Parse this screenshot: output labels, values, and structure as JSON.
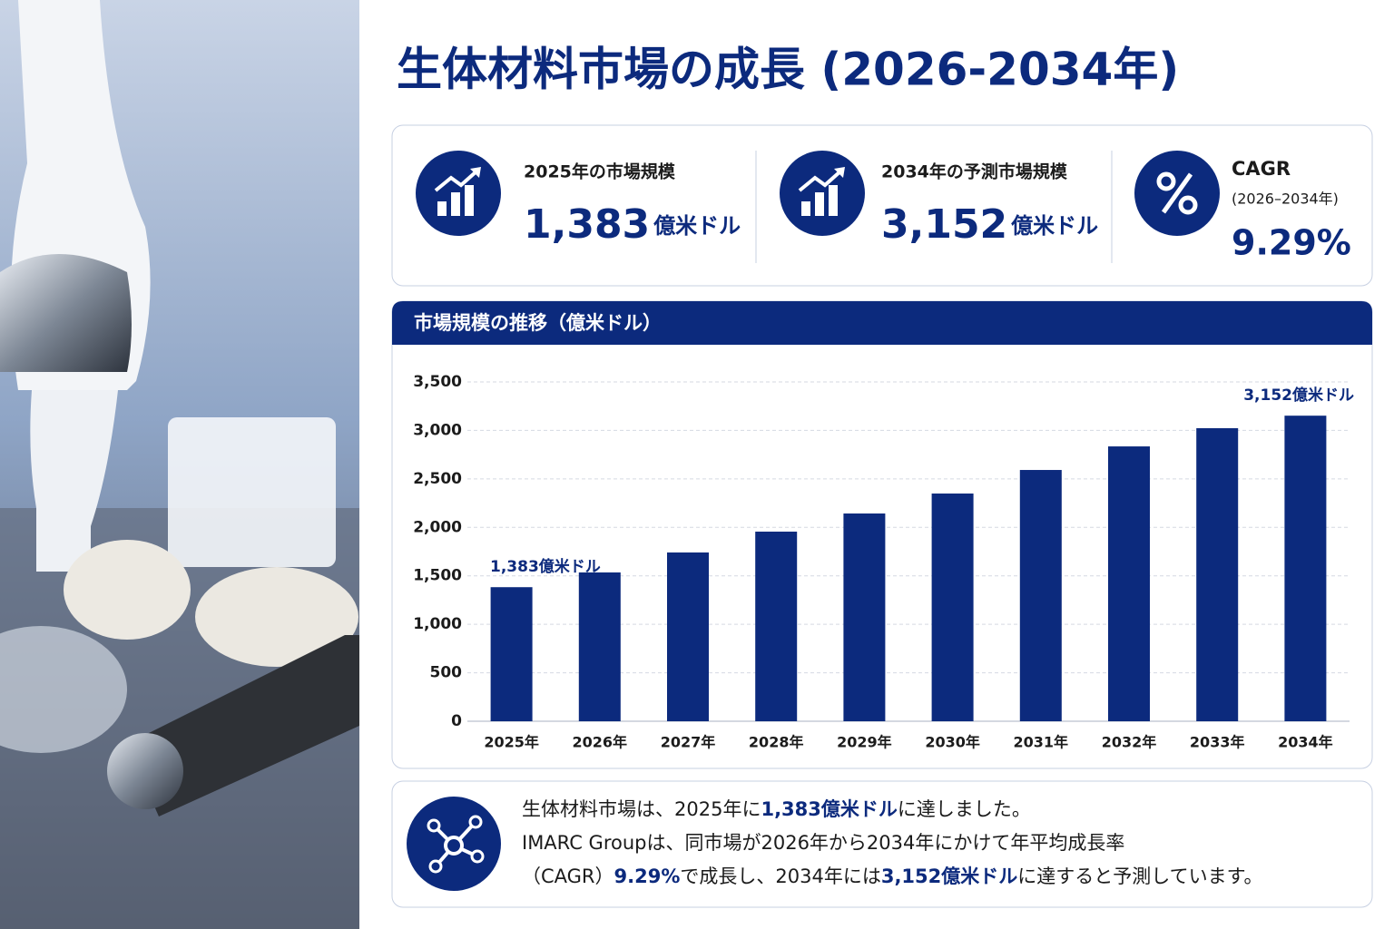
{
  "title": "生体材料市場の成長 (2026-2034年)",
  "kpis": [
    {
      "label": "2025年の市場規模",
      "value": "1,383",
      "unit": "億米ドル"
    },
    {
      "label": "2034年の予測市場規模",
      "value": "3,152",
      "unit": "億米ドル"
    },
    {
      "label": "CAGR",
      "sublabel": "(2026–2034年)",
      "value": "9.29%"
    }
  ],
  "chart_data": {
    "type": "bar",
    "title": "市場規模の推移（億米ドル）",
    "categories": [
      "2025年",
      "2026年",
      "2027年",
      "2028年",
      "2029年",
      "2030年",
      "2031年",
      "2032年",
      "2033年",
      "2034年"
    ],
    "values": [
      1383,
      1535,
      1741,
      1956,
      2143,
      2349,
      2592,
      2835,
      3023,
      3152
    ],
    "value_labels": [
      "1,383億米ドル",
      null,
      null,
      null,
      null,
      null,
      null,
      null,
      null,
      "3,152億米ドル"
    ],
    "color": "#0c2a7d",
    "ylim": [
      0,
      3500
    ],
    "yticks": [
      0,
      500,
      {
        "value": 1000,
        "label": "1,000"
      },
      {
        "value": 1500,
        "label": "1,500"
      },
      {
        "value": 2000,
        "label": "2,000"
      },
      {
        "value": 2500,
        "label": "2,500"
      },
      {
        "value": 3000,
        "label": "3,000"
      },
      {
        "value": 3500,
        "label": "3,500"
      }
    ],
    "grid": true
  },
  "summary": {
    "lines": [
      [
        {
          "text": "生体材料市場は、2025年に",
          "em": false
        },
        {
          "text": "1,383億米ドル",
          "em": true
        },
        {
          "text": "に達しました。",
          "em": false
        }
      ],
      [
        {
          "text": "IMARC Groupは、同市場が2026年から2034年にかけて年平均成長率",
          "em": false
        }
      ],
      [
        {
          "text": "（CAGR）",
          "em": false
        },
        {
          "text": "9.29%",
          "em": true
        },
        {
          "text": "で成長し、2034年には",
          "em": false
        },
        {
          "text": "3,152億米ドル",
          "em": true
        },
        {
          "text": "に達すると予測しています。",
          "em": false
        }
      ]
    ]
  }
}
